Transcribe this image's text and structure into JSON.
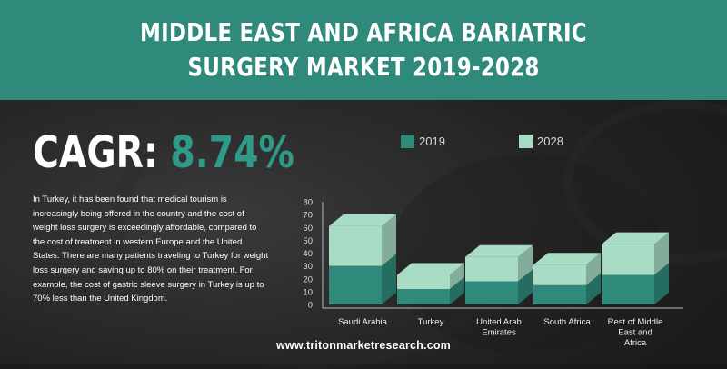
{
  "title": {
    "line1": "MIDDLE EAST AND AFRICA BARIATRIC",
    "line2": "SURGERY MARKET  2019-2028"
  },
  "cagr": {
    "label": "CAGR:",
    "value": "8.74%"
  },
  "description": "In Turkey, it has been found that medical tourism is increasingly being offered in the country and the cost of weight loss surgery is exceedingly affordable, compared to the cost of treatment in western Europe and the United States. There are many patients traveling to Turkey for weight loss surgery and saving up to 80% on their treatment. For example, the cost of gastric sleeve surgery in Turkey is up to 70% less than the United Kingdom.",
  "footer": "www.tritonmarketresearch.com",
  "colors": {
    "banner": "#2f8a7c",
    "accent": "#2f9a88",
    "series_2019": "#2f8a7c",
    "series_2028": "#a8dcc5"
  },
  "chart_data": {
    "type": "bar",
    "stacked": true,
    "three_d": true,
    "categories": [
      "Saudi Arabia",
      "Turkey",
      "United Arab Emirates",
      "South Africa",
      "Rest of Middle East and Africa"
    ],
    "category_lines": [
      [
        "Saudi Arabia"
      ],
      [
        "Turkey"
      ],
      [
        "United Arab",
        "Emirates"
      ],
      [
        "South Africa"
      ],
      [
        "Rest of Middle",
        "East and",
        "Africa"
      ]
    ],
    "series": [
      {
        "name": "2019",
        "values": [
          30,
          12,
          18,
          15,
          23
        ]
      },
      {
        "name": "2028",
        "values": [
          31,
          11,
          19,
          16,
          24
        ]
      }
    ],
    "ylim": [
      0,
      80
    ],
    "yticks": [
      0,
      10,
      20,
      30,
      40,
      50,
      60,
      70,
      80
    ],
    "legend_position": "top",
    "grid": false
  }
}
